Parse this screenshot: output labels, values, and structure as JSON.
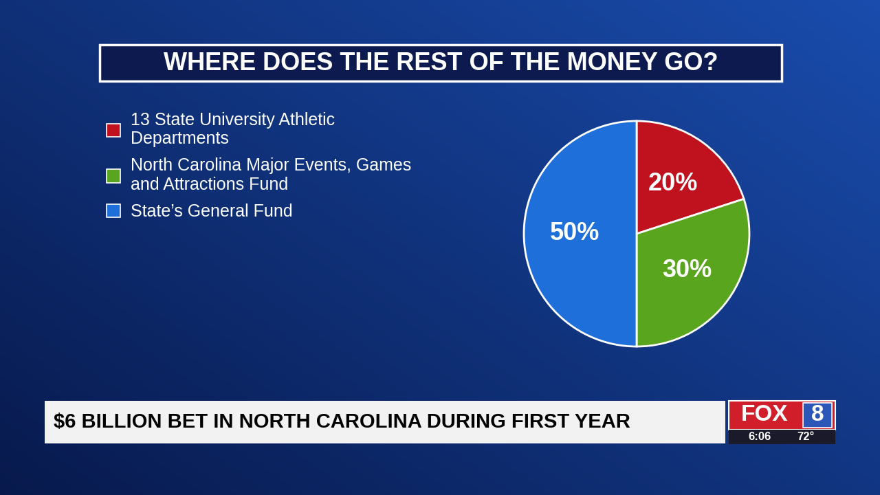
{
  "chart_data": {
    "type": "pie",
    "title": "WHERE DOES THE REST OF THE MONEY GO?",
    "categories": [
      "13 State University Athletic Departments",
      "North Carolina Major Events, Games and Attractions Fund",
      "State’s General Fund"
    ],
    "values": [
      20,
      30,
      50
    ],
    "value_labels": [
      "20%",
      "30%",
      "50%"
    ],
    "colors": [
      "#c0111f",
      "#5aa51e",
      "#1f6fdb"
    ],
    "data_labels": true,
    "legend": "upper left",
    "annotations": [
      "$6 BILLION BET IN NORTH CAROLINA DURING FIRST YEAR",
      "FOX",
      "8",
      "6:06",
      "72°"
    ]
  }
}
